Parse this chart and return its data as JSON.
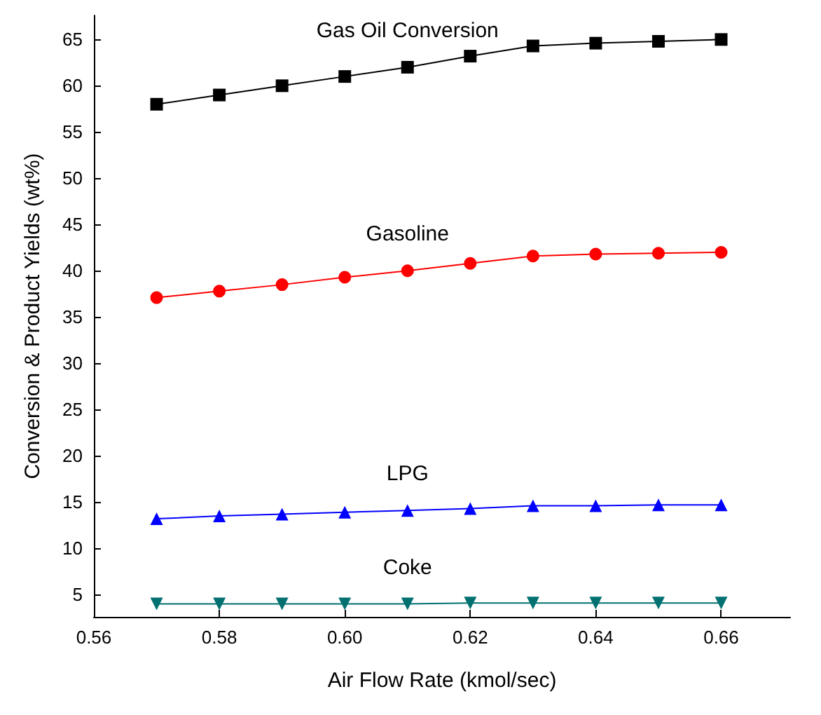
{
  "chart_data": {
    "type": "line",
    "xlabel": "Air Flow Rate (kmol/sec)",
    "ylabel": "Conversion & Product Yields (wt%)",
    "x": [
      0.57,
      0.58,
      0.59,
      0.6,
      0.61,
      0.62,
      0.63,
      0.64,
      0.65,
      0.66
    ],
    "series": [
      {
        "name": "Gas Oil Conversion",
        "color": "#000000",
        "marker": "square",
        "values": [
          58.0,
          59.0,
          60.0,
          61.0,
          62.0,
          63.2,
          64.3,
          64.6,
          64.8,
          65.0
        ]
      },
      {
        "name": "Gasoline",
        "color": "#ff0000",
        "marker": "circle",
        "values": [
          37.1,
          37.8,
          38.5,
          39.3,
          40.0,
          40.8,
          41.6,
          41.8,
          41.9,
          42.0
        ]
      },
      {
        "name": "LPG",
        "color": "#0000ff",
        "marker": "triangle",
        "values": [
          13.2,
          13.5,
          13.7,
          13.9,
          14.1,
          14.3,
          14.6,
          14.6,
          14.7,
          14.7
        ]
      },
      {
        "name": "Coke",
        "color": "#007070",
        "marker": "triangle-down",
        "values": [
          4.0,
          4.0,
          4.0,
          4.0,
          4.0,
          4.1,
          4.1,
          4.1,
          4.1,
          4.1
        ]
      }
    ],
    "xlim": [
      0.56,
      0.671
    ],
    "xticks": [
      0.56,
      0.58,
      {
        "value": 0.6,
        "label": "0.60"
      },
      0.62,
      0.64,
      0.66
    ],
    "ylim": [
      2.6,
      67.6
    ],
    "yticks": [
      5,
      10,
      15,
      20,
      25,
      30,
      35,
      40,
      45,
      50,
      55,
      60,
      65
    ],
    "grid": false,
    "legend": false,
    "line_style": "solid"
  }
}
